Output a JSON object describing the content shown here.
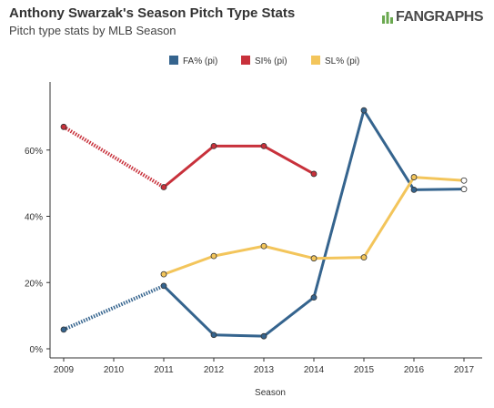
{
  "title": "Anthony Swarzak's Season Pitch Type Stats",
  "subtitle": "Pitch type stats by MLB Season",
  "logo_text": "FANGRAPHS",
  "chart_data": {
    "type": "line",
    "xlabel": "Season",
    "ylabel": "",
    "x": [
      2009,
      2010,
      2011,
      2012,
      2013,
      2014,
      2015,
      2016,
      2017
    ],
    "ylim": [
      0,
      80
    ],
    "yticks": [
      0,
      20,
      40,
      60
    ],
    "ytick_labels": [
      "0%",
      "20%",
      "40%",
      "60%"
    ],
    "grid": false,
    "legend_position": "top-center",
    "series": [
      {
        "name": "FA% (pi)",
        "color": "#35648e",
        "points": [
          [
            2009,
            5.8
          ],
          [
            2011,
            19.0
          ],
          [
            2012,
            4.2
          ],
          [
            2013,
            3.8
          ],
          [
            2014,
            15.5
          ],
          [
            2015,
            72.0
          ],
          [
            2016,
            48.0
          ],
          [
            2017,
            48.2
          ]
        ],
        "dotted_segments": [
          [
            2009,
            2011
          ]
        ]
      },
      {
        "name": "SI% (pi)",
        "color": "#c8313b",
        "points": [
          [
            2009,
            67.0
          ],
          [
            2011,
            48.8
          ],
          [
            2012,
            61.2
          ],
          [
            2013,
            61.2
          ],
          [
            2014,
            52.8
          ]
        ],
        "dotted_segments": [
          [
            2009,
            2011
          ]
        ]
      },
      {
        "name": "SL% (pi)",
        "color": "#f3c55b",
        "points": [
          [
            2011,
            22.5
          ],
          [
            2012,
            28.0
          ],
          [
            2013,
            31.0
          ],
          [
            2014,
            27.3
          ],
          [
            2015,
            27.6
          ],
          [
            2016,
            51.8
          ],
          [
            2017,
            50.8
          ]
        ],
        "dotted_segments": []
      }
    ]
  }
}
